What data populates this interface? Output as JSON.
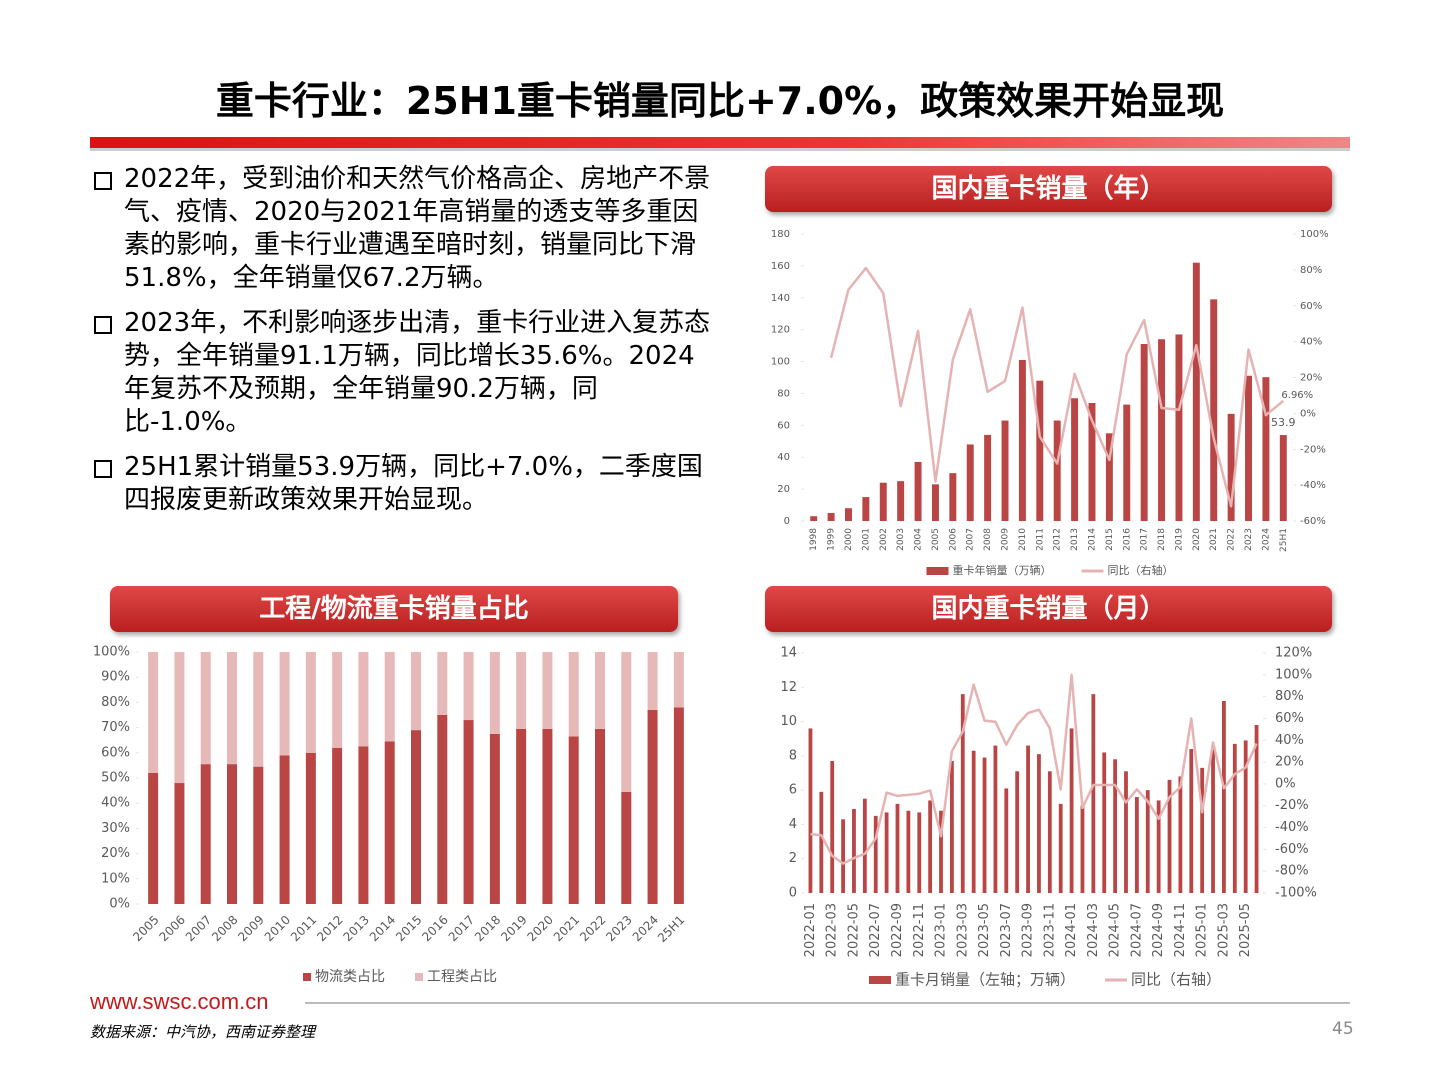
{
  "header": {
    "title": "重卡行业：25H1重卡销量同比+7.0%，政策效果开始显现"
  },
  "bullets": [
    "2022年，受到油价和天然气价格高企、房地产不景气、疫情、2020与2021年高销量的透支等多重因素的影响，重卡行业遭遇至暗时刻，销量同比下滑51.8%，全年销量仅67.2万辆。",
    "2023年，不利影响逐步出清，重卡行业进入复苏态势，全年销量91.1万辆，同比增长35.6%。2024年复苏不及预期，全年销量90.2万辆，同比-1.0%。",
    "25H1累计销量53.9万辆，同比+7.0%，二季度国四报废更新政策效果开始显现。"
  ],
  "footer": {
    "website": "www.swsc.com.cn",
    "source": "数据来源：中汽协，西南证券整理",
    "page": "45"
  },
  "chart_data": [
    {
      "type": "combo",
      "title": "国内重卡销量（年）",
      "categories": [
        "1998",
        "1999",
        "2000",
        "2001",
        "2002",
        "2003",
        "2004",
        "2005",
        "2006",
        "2007",
        "2008",
        "2009",
        "2010",
        "2011",
        "2012",
        "2013",
        "2014",
        "2015",
        "2016",
        "2017",
        "2018",
        "2019",
        "2020",
        "2021",
        "2022",
        "2023",
        "2024",
        "25H1"
      ],
      "series": [
        {
          "name": "重卡年销量（万辆）",
          "type": "bar",
          "color": "#b94545",
          "values": [
            3,
            5,
            8,
            15,
            24,
            25,
            37,
            23,
            30,
            48,
            54,
            63,
            101,
            88,
            63,
            77,
            74,
            55,
            73,
            111,
            114,
            117,
            162,
            139,
            67.2,
            91.1,
            90.2,
            53.9
          ],
          "value_labels": [
            null,
            null,
            null,
            null,
            null,
            null,
            null,
            null,
            null,
            null,
            null,
            null,
            null,
            null,
            null,
            null,
            null,
            null,
            null,
            null,
            null,
            null,
            null,
            null,
            null,
            null,
            null,
            "53.9"
          ]
        },
        {
          "name": "同比（右轴）",
          "type": "line",
          "axis": "y2",
          "color": "#e6b3b3",
          "values": [
            null,
            31,
            69,
            81,
            67,
            4,
            46,
            -38,
            30,
            58,
            12,
            18,
            59,
            -13,
            -28,
            22,
            -4,
            -26,
            33,
            52,
            3,
            2,
            38,
            -14,
            -51.8,
            35.6,
            -1.0,
            6.96
          ],
          "value_labels": [
            null,
            null,
            null,
            null,
            null,
            null,
            null,
            null,
            null,
            null,
            null,
            null,
            null,
            null,
            null,
            null,
            null,
            null,
            null,
            null,
            null,
            null,
            null,
            null,
            null,
            null,
            null,
            "6.96%"
          ]
        }
      ],
      "ylim": [
        0,
        180
      ],
      "yticks": [
        0,
        20,
        40,
        60,
        80,
        100,
        120,
        140,
        160,
        180
      ],
      "y2lim": [
        -60,
        100
      ],
      "y2ticks": [
        {
          "value": -60,
          "label": "-60%"
        },
        {
          "value": -40,
          "label": "-40%"
        },
        {
          "value": -20,
          "label": "-20%"
        },
        {
          "value": 0,
          "label": "0%"
        },
        {
          "value": 20,
          "label": "20%"
        },
        {
          "value": 40,
          "label": "40%"
        },
        {
          "value": 60,
          "label": "60%"
        },
        {
          "value": 80,
          "label": "80%"
        },
        {
          "value": 100,
          "label": "100%"
        }
      ]
    },
    {
      "type": "bar",
      "stacked": true,
      "title": "工程/物流重卡销量占比",
      "categories": [
        "2005",
        "2006",
        "2007",
        "2008",
        "2009",
        "2010",
        "2011",
        "2012",
        "2013",
        "2014",
        "2015",
        "2016",
        "2017",
        "2018",
        "2019",
        "2020",
        "2021",
        "2022",
        "2023",
        "2024",
        "25H1"
      ],
      "series": [
        {
          "name": "物流类占比",
          "color": "#b94545",
          "values": [
            52,
            48,
            55.5,
            55.5,
            54.5,
            59,
            60,
            62,
            62.5,
            64.5,
            69,
            75,
            73,
            67.5,
            69.5,
            69.5,
            66.5,
            69.5,
            44.5,
            77,
            78
          ]
        },
        {
          "name": "工程类占比",
          "color": "#e6b8b7",
          "values": [
            48,
            52,
            44.5,
            44.5,
            45.5,
            41,
            40,
            38,
            37.5,
            35.5,
            31,
            25,
            27,
            32.5,
            30.5,
            30.5,
            33.5,
            30.5,
            55.5,
            23,
            22
          ]
        }
      ],
      "ylim": [
        0,
        100
      ],
      "yticks": [
        {
          "value": 0,
          "label": "0%"
        },
        {
          "value": 10,
          "label": "10%"
        },
        {
          "value": 20,
          "label": "20%"
        },
        {
          "value": 30,
          "label": "30%"
        },
        {
          "value": 40,
          "label": "40%"
        },
        {
          "value": 50,
          "label": "50%"
        },
        {
          "value": 60,
          "label": "60%"
        },
        {
          "value": 70,
          "label": "70%"
        },
        {
          "value": 80,
          "label": "80%"
        },
        {
          "value": 90,
          "label": "90%"
        },
        {
          "value": 100,
          "label": "100%"
        }
      ]
    },
    {
      "type": "combo",
      "title": "国内重卡销量（月）",
      "categories": [
        "2022-01",
        null,
        "2022-03",
        null,
        "2022-05",
        null,
        "2022-07",
        null,
        "2022-09",
        null,
        "2022-11",
        null,
        "2023-01",
        null,
        "2023-03",
        null,
        "2023-05",
        null,
        "2023-07",
        null,
        "2023-09",
        null,
        "2023-11",
        null,
        "2024-01",
        null,
        "2024-03",
        null,
        "2024-05",
        null,
        "2024-07",
        null,
        "2024-09",
        null,
        "2024-11",
        null,
        "2025-01",
        null,
        "2025-03",
        null,
        "2025-05",
        null
      ],
      "series": [
        {
          "name": "重卡月销量（左轴；万辆）",
          "type": "bar",
          "color": "#b94545",
          "values": [
            9.6,
            5.9,
            7.7,
            4.3,
            4.9,
            5.5,
            4.5,
            4.7,
            5.2,
            4.8,
            4.7,
            5.4,
            4.8,
            7.7,
            11.6,
            8.3,
            7.9,
            8.6,
            6.1,
            7.1,
            8.6,
            8.1,
            7.1,
            5.2,
            9.6,
            5.1,
            11.6,
            8.2,
            7.8,
            7.1,
            5.6,
            6.0,
            5.4,
            6.6,
            6.8,
            8.4,
            7.3,
            8.4,
            11.2,
            8.7,
            8.9,
            9.8
          ]
        },
        {
          "name": "同比（右轴）",
          "type": "line",
          "axis": "y2",
          "color": "#e6b3b3",
          "values": [
            -46,
            -47,
            -66,
            -73,
            -68,
            -64,
            -50,
            -8,
            -11,
            -10,
            -9,
            -6,
            -48,
            30,
            48,
            91,
            58,
            57,
            36,
            54,
            65,
            68,
            51,
            -5,
            100,
            -22,
            -1,
            -1,
            -1,
            -17,
            -5,
            -16,
            -32,
            -12,
            -3,
            60,
            -26,
            38,
            -4,
            9,
            15,
            37
          ]
        }
      ],
      "ylim": [
        0,
        14
      ],
      "yticks": [
        0,
        2,
        4,
        6,
        8,
        10,
        12,
        14
      ],
      "y2lim": [
        -100,
        120
      ],
      "y2ticks": [
        {
          "value": -100,
          "label": "-100%"
        },
        {
          "value": -80,
          "label": "-80%"
        },
        {
          "value": -60,
          "label": "-60%"
        },
        {
          "value": -40,
          "label": "-40%"
        },
        {
          "value": -20,
          "label": "-20%"
        },
        {
          "value": 0,
          "label": "0%"
        },
        {
          "value": 20,
          "label": "20%"
        },
        {
          "value": 40,
          "label": "40%"
        },
        {
          "value": 60,
          "label": "60%"
        },
        {
          "value": 80,
          "label": "80%"
        },
        {
          "value": 100,
          "label": "100%"
        },
        {
          "value": 120,
          "label": "120%"
        }
      ]
    }
  ]
}
